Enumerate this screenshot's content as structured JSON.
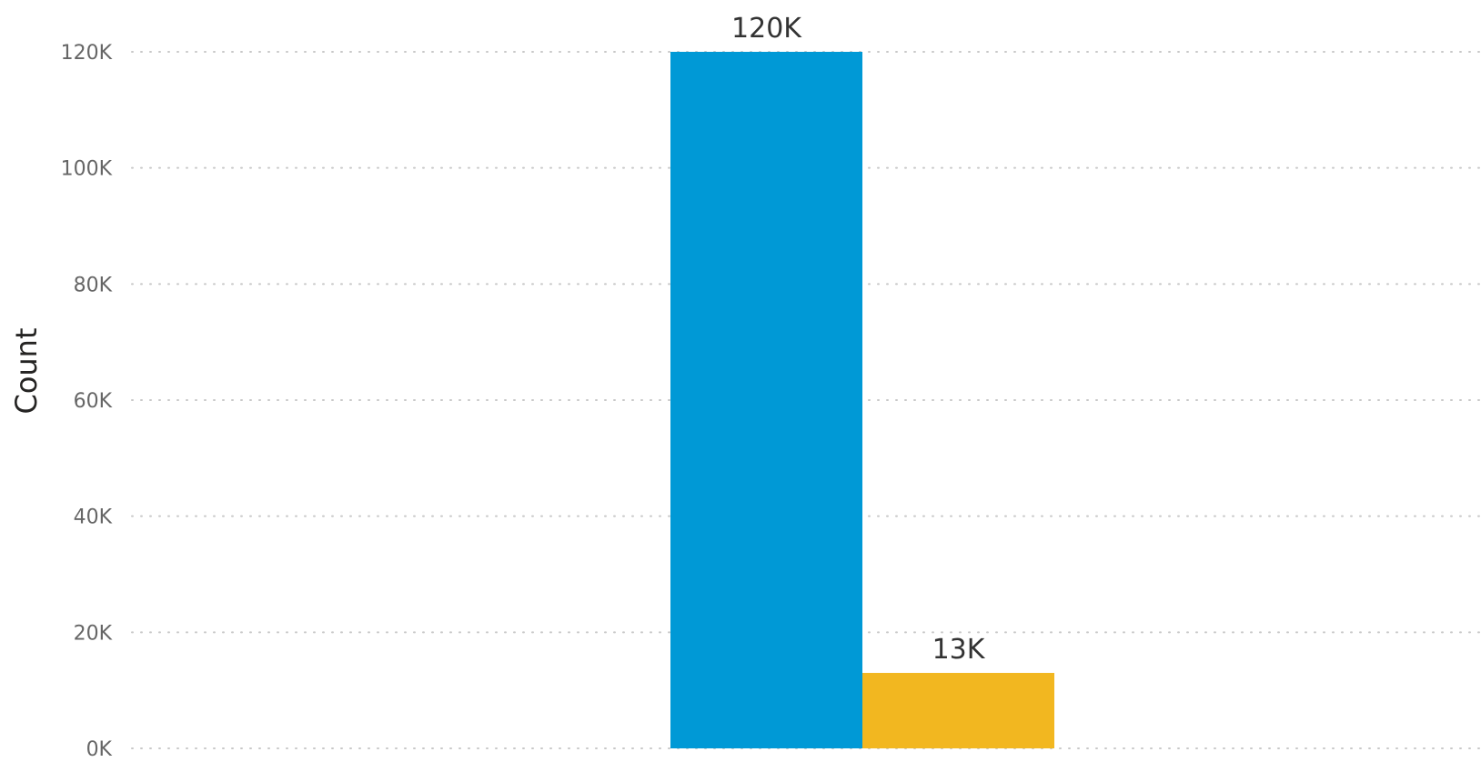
{
  "chart_data": {
    "type": "bar",
    "categories": [
      "",
      ""
    ],
    "values": [
      120000,
      13000
    ],
    "data_labels": [
      "120K",
      "13K"
    ],
    "colors": [
      "#0099d6",
      "#f2b720"
    ],
    "title": "",
    "xlabel": "",
    "ylabel": "Count",
    "ylim": [
      0,
      120000
    ],
    "yticks": [
      0,
      20000,
      40000,
      60000,
      80000,
      100000,
      120000
    ],
    "ytick_labels": [
      "0K",
      "20K",
      "40K",
      "60K",
      "80K",
      "100K",
      "120K"
    ],
    "grid": true,
    "legend": "none"
  }
}
